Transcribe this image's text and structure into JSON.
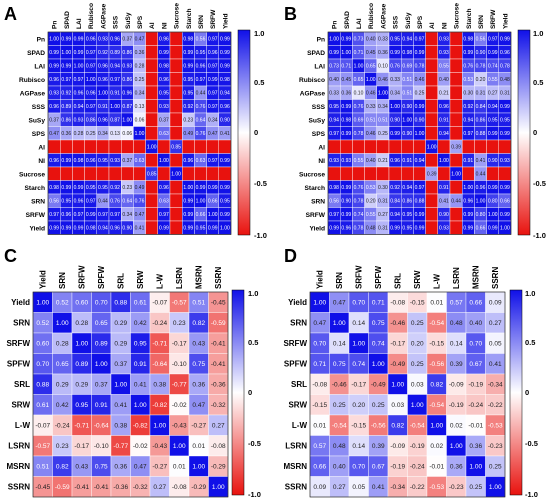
{
  "panels": [
    "A",
    "B",
    "C",
    "D"
  ],
  "colorbar": {
    "ticks": [
      "1.0",
      "0.5",
      "0",
      "-0.5",
      "-1.0"
    ],
    "colors": {
      "positive": "#1a1ae6",
      "neutral": "#ffffff",
      "negative": "#e6201a"
    }
  },
  "chart_data": [
    {
      "type": "heatmap",
      "panel": "A",
      "labels": [
        "Pn",
        "SPAD",
        "LAI",
        "Rubisco",
        "AGPase",
        "SSS",
        "SuSy",
        "SPS",
        "AI",
        "NI",
        "Sucrose",
        "Starch",
        "SRN",
        "SRFW",
        "Yield"
      ],
      "values": [
        [
          1.0,
          0.99,
          0.99,
          0.96,
          0.93,
          0.96,
          0.37,
          0.47,
          null,
          0.96,
          null,
          0.98,
          0.56,
          0.97,
          0.99
        ],
        [
          0.99,
          1.0,
          0.99,
          0.97,
          0.92,
          0.89,
          0.86,
          0.36,
          null,
          0.99,
          null,
          0.99,
          0.95,
          0.96,
          0.99
        ],
        [
          0.99,
          0.99,
          1.0,
          0.97,
          0.96,
          0.94,
          0.93,
          0.28,
          null,
          0.98,
          null,
          0.99,
          0.96,
          0.97,
          0.99
        ],
        [
          0.96,
          0.97,
          0.97,
          1.0,
          0.96,
          0.97,
          0.86,
          0.25,
          null,
          0.96,
          null,
          0.95,
          0.97,
          0.99,
          0.98
        ],
        [
          0.93,
          0.92,
          0.96,
          0.96,
          1.0,
          0.91,
          0.96,
          0.34,
          null,
          0.95,
          null,
          0.95,
          0.44,
          0.97,
          0.94
        ],
        [
          0.96,
          0.89,
          0.94,
          0.97,
          0.91,
          1.0,
          0.87,
          0.13,
          null,
          0.93,
          null,
          0.92,
          0.76,
          0.97,
          0.96
        ],
        [
          0.37,
          0.86,
          0.93,
          0.86,
          0.96,
          0.87,
          1.0,
          0.06,
          null,
          0.37,
          null,
          0.23,
          0.64,
          0.34,
          0.9
        ],
        [
          0.47,
          0.36,
          0.28,
          0.25,
          0.34,
          0.13,
          0.06,
          1.0,
          null,
          0.63,
          null,
          0.49,
          0.76,
          0.47,
          0.41
        ],
        [
          null,
          null,
          null,
          null,
          null,
          null,
          null,
          null,
          1.0,
          null,
          0.85,
          null,
          null,
          null,
          null
        ],
        [
          0.96,
          0.99,
          0.98,
          0.96,
          0.95,
          0.93,
          0.37,
          0.63,
          null,
          1.0,
          null,
          0.96,
          0.63,
          0.97,
          0.99
        ],
        [
          null,
          null,
          null,
          null,
          null,
          null,
          null,
          null,
          0.85,
          null,
          1.0,
          null,
          null,
          null,
          null
        ],
        [
          0.98,
          0.99,
          0.99,
          0.95,
          0.95,
          0.92,
          0.23,
          0.49,
          null,
          0.96,
          null,
          1.0,
          0.99,
          0.99,
          0.99
        ],
        [
          0.56,
          0.95,
          0.96,
          0.97,
          0.44,
          0.76,
          0.64,
          0.76,
          null,
          0.63,
          null,
          0.99,
          1.0,
          0.66,
          0.95
        ],
        [
          0.97,
          0.96,
          0.97,
          0.99,
          0.97,
          0.97,
          0.34,
          0.47,
          null,
          0.97,
          null,
          0.99,
          0.66,
          1.0,
          0.99
        ],
        [
          0.99,
          0.99,
          0.99,
          0.98,
          0.94,
          0.96,
          0.9,
          0.41,
          null,
          0.99,
          null,
          0.99,
          0.95,
          0.99,
          1.0
        ]
      ],
      "colorbar_range": [
        -1.0,
        1.0
      ]
    },
    {
      "type": "heatmap",
      "panel": "B",
      "labels": [
        "Pn",
        "SPAD",
        "LAI",
        "Rubisco",
        "AGPase",
        "SSS",
        "SuSy",
        "SPS",
        "AI",
        "NI",
        "Sucrose",
        "Starch",
        "SRN",
        "SRFW",
        "Yield"
      ],
      "values": [
        [
          1.0,
          0.99,
          0.73,
          0.4,
          0.33,
          0.95,
          0.94,
          0.97,
          null,
          0.93,
          null,
          0.98,
          0.56,
          0.97,
          0.99
        ],
        [
          0.99,
          1.0,
          0.71,
          0.45,
          0.36,
          0.99,
          0.98,
          0.99,
          null,
          0.93,
          null,
          0.99,
          0.9,
          0.99,
          0.96
        ],
        [
          0.73,
          0.71,
          1.0,
          0.65,
          0.1,
          0.76,
          0.69,
          0.78,
          null,
          0.55,
          null,
          0.76,
          0.78,
          0.74,
          0.78
        ],
        [
          0.4,
          0.45,
          0.65,
          1.0,
          0.46,
          0.33,
          0.51,
          0.46,
          null,
          0.4,
          null,
          0.53,
          0.2,
          0.55,
          0.48
        ],
        [
          0.33,
          0.36,
          0.1,
          0.46,
          1.0,
          0.34,
          0.51,
          0.25,
          null,
          0.21,
          null,
          0.3,
          0.31,
          0.27,
          0.31
        ],
        [
          0.95,
          0.99,
          0.76,
          0.33,
          0.34,
          1.0,
          0.9,
          0.99,
          null,
          0.96,
          null,
          0.92,
          0.84,
          0.94,
          0.99
        ],
        [
          0.94,
          0.98,
          0.69,
          0.51,
          0.51,
          0.9,
          1.0,
          0.9,
          null,
          0.91,
          null,
          0.94,
          0.86,
          0.95,
          0.95
        ],
        [
          0.97,
          0.99,
          0.78,
          0.46,
          0.25,
          0.99,
          0.9,
          1.0,
          null,
          0.94,
          null,
          0.97,
          0.88,
          0.99,
          0.99
        ],
        [
          null,
          null,
          null,
          null,
          null,
          null,
          null,
          null,
          1.0,
          null,
          0.39,
          null,
          null,
          null,
          null
        ],
        [
          0.93,
          0.93,
          0.55,
          0.4,
          0.21,
          0.96,
          0.91,
          0.94,
          null,
          1.0,
          null,
          0.91,
          0.41,
          0.9,
          0.93
        ],
        [
          null,
          null,
          null,
          null,
          null,
          null,
          null,
          null,
          0.39,
          null,
          1.0,
          null,
          0.44,
          null,
          null
        ],
        [
          0.98,
          0.99,
          0.76,
          0.53,
          0.3,
          0.92,
          0.94,
          0.97,
          null,
          0.91,
          null,
          1.0,
          0.96,
          0.99,
          0.99
        ],
        [
          0.56,
          0.9,
          0.78,
          0.2,
          0.31,
          0.84,
          0.86,
          0.88,
          null,
          0.41,
          0.44,
          0.96,
          1.0,
          0.8,
          0.66
        ],
        [
          0.97,
          0.99,
          0.74,
          0.55,
          0.27,
          0.94,
          0.95,
          0.99,
          null,
          0.9,
          null,
          0.99,
          0.8,
          1.0,
          0.99
        ],
        [
          0.99,
          0.96,
          0.78,
          0.48,
          0.31,
          0.99,
          0.95,
          0.99,
          null,
          0.93,
          null,
          0.99,
          0.66,
          0.99,
          1.0
        ]
      ],
      "colorbar_range": [
        -1.0,
        1.0
      ]
    },
    {
      "type": "heatmap",
      "panel": "C",
      "labels": [
        "Yield",
        "SRN",
        "SRFW",
        "SPFW",
        "SRL",
        "SRW",
        "L-W",
        "LSRN",
        "MSRN",
        "SSRN"
      ],
      "values": [
        [
          1.0,
          0.52,
          0.6,
          0.7,
          0.88,
          0.61,
          -0.07,
          -0.57,
          0.51,
          -0.45
        ],
        [
          0.52,
          1.0,
          0.28,
          0.65,
          0.29,
          0.42,
          -0.24,
          0.23,
          0.82,
          -0.59
        ],
        [
          0.6,
          0.28,
          1.0,
          0.89,
          0.29,
          0.95,
          -0.71,
          -0.17,
          0.43,
          -0.41
        ],
        [
          0.7,
          0.65,
          0.89,
          1.0,
          0.37,
          0.91,
          -0.64,
          -0.1,
          0.75,
          -0.41
        ],
        [
          0.88,
          0.29,
          0.29,
          0.37,
          1.0,
          0.41,
          0.38,
          -0.77,
          0.36,
          -0.36
        ],
        [
          0.61,
          0.42,
          0.95,
          0.91,
          0.41,
          1.0,
          -0.82,
          -0.02,
          0.47,
          -0.32
        ],
        [
          -0.07,
          -0.24,
          -0.71,
          -0.64,
          0.38,
          -0.82,
          1.0,
          -0.43,
          -0.27,
          0.27
        ],
        [
          -0.57,
          0.23,
          -0.17,
          -0.1,
          -0.77,
          -0.02,
          -0.43,
          1.0,
          0.01,
          -0.08
        ],
        [
          0.51,
          0.82,
          0.43,
          0.75,
          0.36,
          0.47,
          -0.27,
          0.01,
          1.0,
          -0.29
        ],
        [
          -0.45,
          -0.59,
          -0.41,
          -0.41,
          -0.36,
          -0.32,
          0.27,
          -0.08,
          -0.29,
          1.0
        ]
      ],
      "colorbar_range": [
        -1.0,
        1.0
      ]
    },
    {
      "type": "heatmap",
      "panel": "D",
      "labels": [
        "Yield",
        "SRN",
        "SRFW",
        "SPFW",
        "SRL",
        "SRW",
        "L-W",
        "LSRN",
        "MSRN",
        "SSRN"
      ],
      "values": [
        [
          1.0,
          0.47,
          0.7,
          0.71,
          -0.08,
          -0.15,
          0.01,
          0.57,
          0.66,
          0.09
        ],
        [
          0.47,
          1.0,
          0.14,
          0.75,
          -0.46,
          0.25,
          -0.54,
          0.48,
          0.4,
          0.27
        ],
        [
          0.7,
          0.14,
          1.0,
          0.74,
          -0.17,
          0.2,
          -0.15,
          0.14,
          0.7,
          0.05
        ],
        [
          0.71,
          0.75,
          0.74,
          1.0,
          -0.49,
          0.25,
          -0.56,
          0.39,
          0.67,
          0.41
        ],
        [
          -0.08,
          -0.46,
          -0.17,
          -0.49,
          1.0,
          0.03,
          0.82,
          -0.09,
          -0.19,
          -0.34
        ],
        [
          -0.15,
          0.25,
          0.2,
          0.25,
          0.03,
          1.0,
          -0.54,
          -0.19,
          -0.24,
          -0.22
        ],
        [
          0.01,
          -0.54,
          -0.15,
          -0.56,
          0.82,
          -0.54,
          1.0,
          0.02,
          -0.01,
          -0.53
        ],
        [
          0.57,
          0.48,
          0.14,
          0.39,
          -0.09,
          -0.19,
          0.02,
          1.0,
          0.36,
          -0.23
        ],
        [
          0.66,
          0.4,
          0.7,
          0.67,
          -0.19,
          -0.24,
          -0.01,
          0.36,
          1.0,
          0.25
        ],
        [
          0.09,
          0.27,
          0.05,
          0.41,
          -0.34,
          -0.22,
          -0.53,
          -0.23,
          0.25,
          1.0
        ]
      ],
      "colorbar_range": [
        -1.0,
        1.0
      ]
    }
  ]
}
